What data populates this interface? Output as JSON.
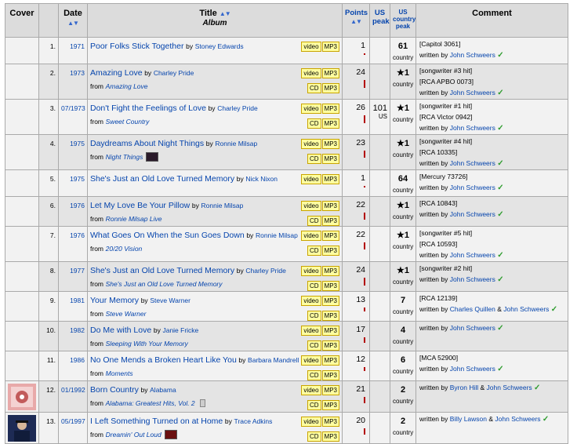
{
  "headers": {
    "cover": "Cover",
    "date": "Date",
    "title": "Title",
    "album": "Album",
    "points": "Points",
    "us_peak": "US peak",
    "us_country_peak": "US country peak",
    "comment": "Comment"
  },
  "buttons": {
    "video": "video",
    "mp3": "MP3",
    "cd": "CD"
  },
  "labels": {
    "by": "by",
    "from": "from",
    "and": "&",
    "written_by": "written by",
    "check": "✓",
    "country": "country",
    "us": "US"
  },
  "colors": {
    "link": "#0645ad",
    "header_bg": "#dcdcdc",
    "button_bg": "#ffffa0",
    "check": "#2e9c2e",
    "points_bar": "#b30000"
  },
  "rows": [
    {
      "num": "1.",
      "date": "1971",
      "song": "Poor Folks Stick Together",
      "artist": "Stoney Edwards",
      "album": "",
      "points": "1",
      "points_level": 0.04,
      "us_peak": "",
      "country_peak": "61",
      "comment_lines": [
        "[Capitol 3061]"
      ],
      "writers": [
        "John Schweers"
      ],
      "cover": ""
    },
    {
      "num": "2.",
      "date": "1973",
      "song": "Amazing Love",
      "artist": "Charley Pride",
      "album": "Amazing Love",
      "points": "24",
      "points_level": 0.96,
      "us_peak": "",
      "country_peak": "★1",
      "comment_lines": [
        "[songwriter #3 hit]",
        "[RCA APBO 0073]"
      ],
      "writers": [
        "John Schweers"
      ],
      "cover": ""
    },
    {
      "num": "3.",
      "date": "07/1973",
      "song": "Don't Fight the Feelings of Love",
      "artist": "Charley Pride",
      "album": "Sweet Country",
      "points": "26",
      "points_level": 1.0,
      "us_peak": "101",
      "country_peak": "★1",
      "comment_lines": [
        "[songwriter #1 hit]",
        "[RCA Victor 0942]"
      ],
      "writers": [
        "John Schweers"
      ],
      "cover": ""
    },
    {
      "num": "4.",
      "date": "1975",
      "song": "Daydreams About Night Things",
      "artist": "Ronnie Milsap",
      "album": "Night Things",
      "points": "23",
      "points_level": 0.92,
      "us_peak": "",
      "country_peak": "★1",
      "comment_lines": [
        "[songwriter #4 hit]",
        "[RCA 10335]"
      ],
      "writers": [
        "John Schweers"
      ],
      "cover": ""
    },
    {
      "num": "5.",
      "date": "1975",
      "song": "She's Just an Old Love Turned Memory",
      "artist": "Nick Nixon",
      "album": "",
      "points": "1",
      "points_level": 0.04,
      "us_peak": "",
      "country_peak": "64",
      "comment_lines": [
        "[Mercury 73726]"
      ],
      "writers": [
        "John Schweers"
      ],
      "cover": ""
    },
    {
      "num": "6.",
      "date": "1976",
      "song": "Let My Love Be Your Pillow",
      "artist": "Ronnie Milsap",
      "album": "Ronnie Milsap Live",
      "points": "22",
      "points_level": 0.88,
      "us_peak": "",
      "country_peak": "★1",
      "comment_lines": [
        "[RCA 10843]"
      ],
      "writers": [
        "John Schweers"
      ],
      "cover": ""
    },
    {
      "num": "7.",
      "date": "1976",
      "song": "What Goes On When the Sun Goes Down",
      "artist": "Ronnie Milsap",
      "album": "20/20 Vision",
      "points": "22",
      "points_level": 0.88,
      "us_peak": "",
      "country_peak": "★1",
      "comment_lines": [
        "[songwriter #5 hit]",
        "[RCA 10593]"
      ],
      "writers": [
        "John Schweers"
      ],
      "cover": ""
    },
    {
      "num": "8.",
      "date": "1977",
      "song": "She's Just an Old Love Turned Memory",
      "artist": "Charley Pride",
      "album": "She's Just an Old Love Turned Memory",
      "points": "24",
      "points_level": 0.96,
      "us_peak": "",
      "country_peak": "★1",
      "comment_lines": [
        "[songwriter #2 hit]"
      ],
      "writers": [
        "John Schweers"
      ],
      "cover": ""
    },
    {
      "num": "9.",
      "date": "1981",
      "song": "Your Memory",
      "artist": "Steve Warner",
      "album": "Steve Warner",
      "points": "13",
      "points_level": 0.52,
      "us_peak": "",
      "country_peak": "7",
      "comment_lines": [
        "[RCA 12139]"
      ],
      "writers": [
        "Charles Quillen",
        "John Schweers"
      ],
      "cover": ""
    },
    {
      "num": "10.",
      "date": "1982",
      "song": "Do Me with Love",
      "artist": "Janie Fricke",
      "album": "Sleeping With Your Memory",
      "points": "17",
      "points_level": 0.68,
      "us_peak": "",
      "country_peak": "4",
      "comment_lines": [],
      "writers": [
        "John Schweers"
      ],
      "cover": ""
    },
    {
      "num": "11.",
      "date": "1986",
      "song": "No One Mends a Broken Heart Like You",
      "artist": "Barbara Mandrell",
      "album": "Moments",
      "points": "12",
      "points_level": 0.48,
      "us_peak": "",
      "country_peak": "6",
      "comment_lines": [
        "[MCA 52900]"
      ],
      "writers": [
        "John Schweers"
      ],
      "cover": ""
    },
    {
      "num": "12.",
      "date": "01/1992",
      "song": "Born Country",
      "artist": "Alabama",
      "album": "Alabama: Greatest Hits, Vol. 2",
      "points": "21",
      "points_level": 0.84,
      "us_peak": "",
      "country_peak": "2",
      "comment_lines": [],
      "writers": [
        "Byron Hill",
        "John Schweers"
      ],
      "cover": "pink"
    },
    {
      "num": "13.",
      "date": "05/1997",
      "song": "I Left Something Turned on at Home",
      "artist": "Trace Adkins",
      "album": "Dreamin' Out Loud",
      "points": "20",
      "points_level": 0.8,
      "us_peak": "",
      "country_peak": "2",
      "comment_lines": [],
      "writers": [
        "Billy Lawson",
        "John Schweers"
      ],
      "cover": "dark"
    }
  ]
}
